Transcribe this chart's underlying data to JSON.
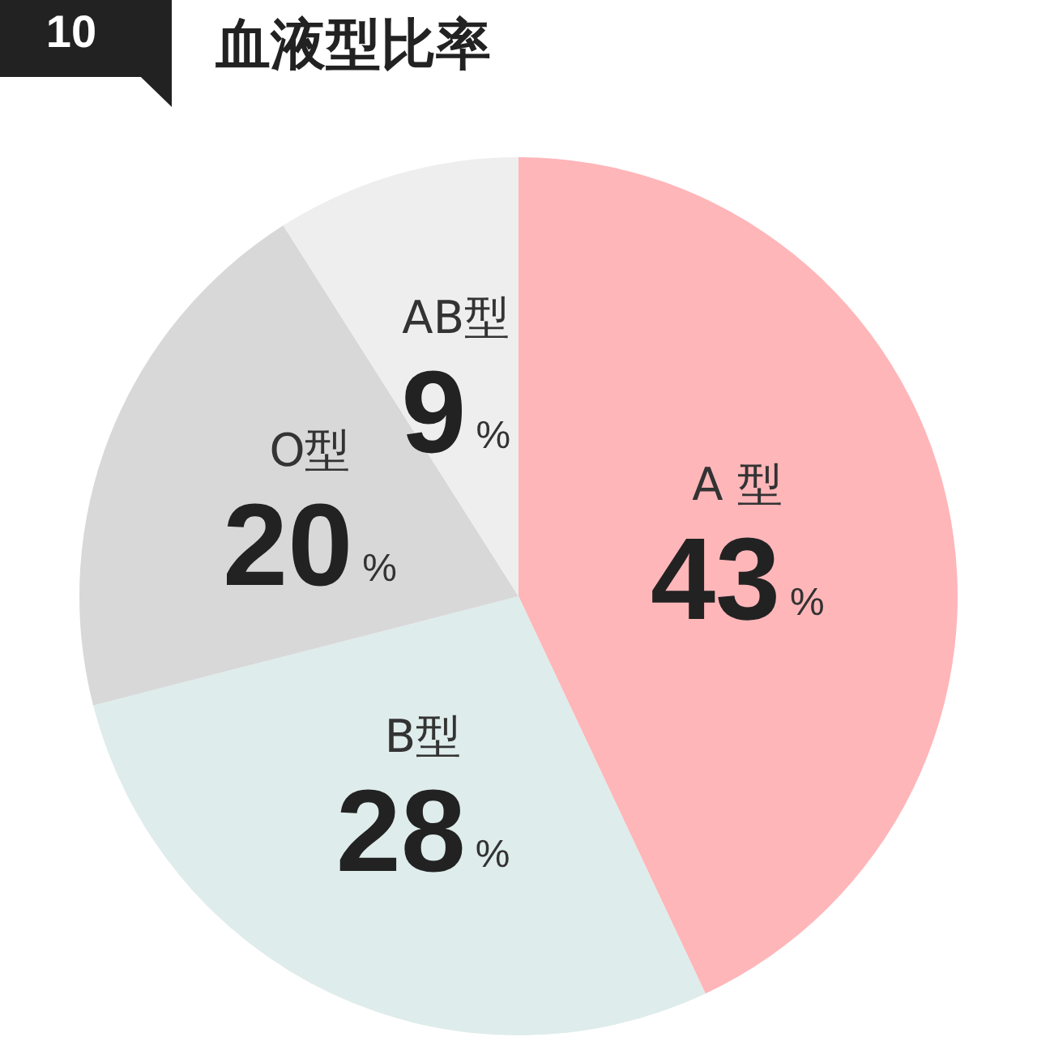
{
  "chart_data": {
    "type": "pie",
    "title": "血液型比率",
    "annotations": [
      "10"
    ],
    "categories": [
      "A 型",
      "B型",
      "O型",
      "AB型"
    ],
    "values": [
      43,
      28,
      20,
      9
    ],
    "value_labels": [
      "43%",
      "28%",
      "20%",
      "9%"
    ],
    "colors": [
      "#ffb6b9",
      "#deeceb",
      "#d8d8d8",
      "#eeeeee"
    ]
  }
}
